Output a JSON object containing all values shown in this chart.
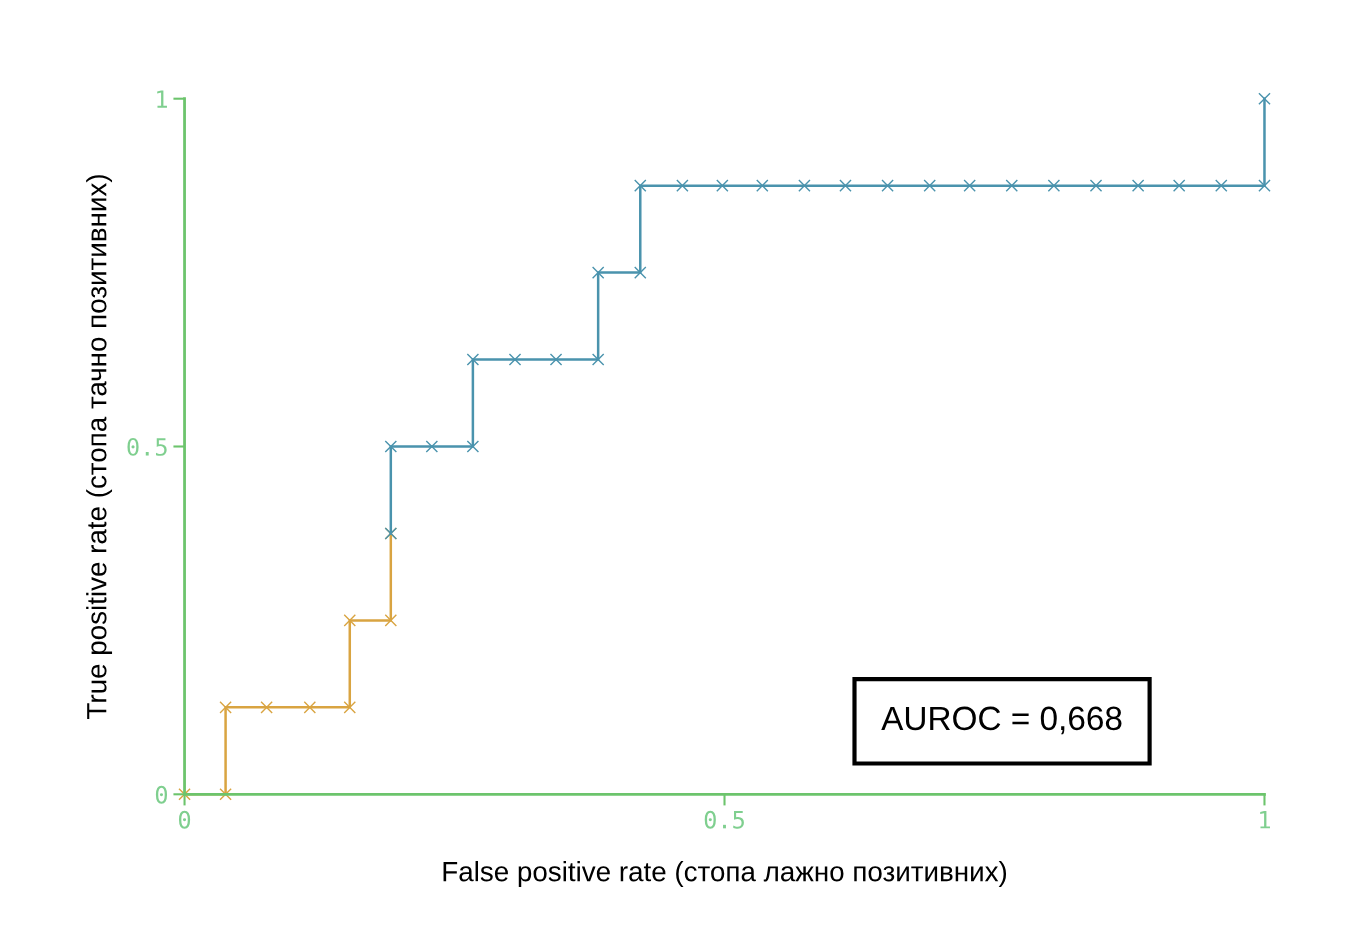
{
  "chart_data": {
    "type": "line",
    "xlabel": "False positive rate (стопа лажно позитивних)",
    "ylabel": "True positive rate (стопа тачно позитивних)",
    "annotations": [
      "AUROC = 0,668"
    ],
    "series": [
      {
        "color": "#d9a441",
        "x": [
          0,
          0.038,
          0.038,
          0.076,
          0.116,
          0.153,
          0.153,
          0.191,
          0.191
        ],
        "values": [
          0,
          0,
          0.125,
          0.125,
          0.125,
          0.125,
          0.25,
          0.25,
          0.375
        ]
      },
      {
        "color": "#4a93ad",
        "x": [
          0.191,
          0.191,
          0.229,
          0.267,
          0.267,
          0.306,
          0.344,
          0.383,
          0.383,
          0.422,
          0.422,
          0.461,
          0.498,
          0.535,
          0.574,
          0.612,
          0.651,
          0.69,
          0.727,
          0.766,
          0.805,
          0.844,
          0.883,
          0.921,
          0.96,
          1,
          1
        ],
        "values": [
          0.375,
          0.5,
          0.5,
          0.5,
          0.625,
          0.625,
          0.625,
          0.625,
          0.75,
          0.75,
          0.875,
          0.875,
          0.875,
          0.875,
          0.875,
          0.875,
          0.875,
          0.875,
          0.875,
          0.875,
          0.875,
          0.875,
          0.875,
          0.875,
          0.875,
          0.875,
          1
        ]
      }
    ],
    "xlim": [
      0,
      1
    ],
    "ylim": [
      0,
      1
    ],
    "xticks": [
      0,
      0.5,
      1
    ],
    "yticks": [
      0,
      0.5,
      1
    ],
    "marker": "cross",
    "line_style": "solid",
    "grid": false,
    "legend": false
  }
}
